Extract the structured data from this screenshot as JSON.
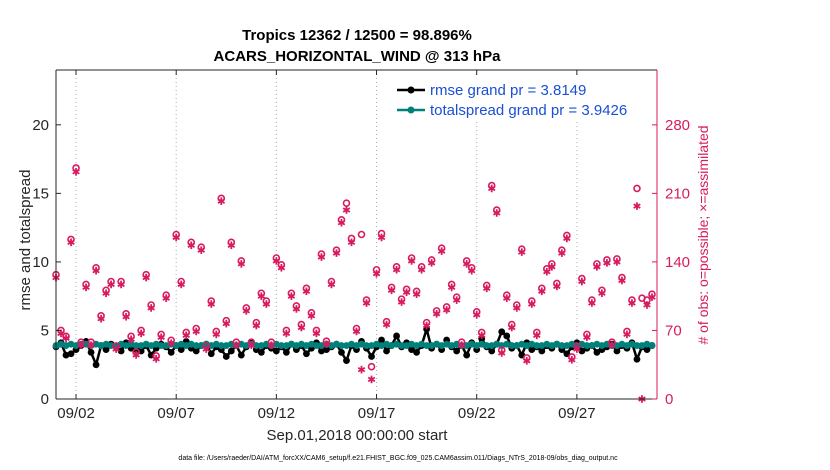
{
  "chart_data": {
    "type": "line",
    "title_line1": "Tropics 12362 / 12500 = 98.896%",
    "title_line2": "ACARS_HORIZONTAL_WIND @ 313 hPa",
    "xlabel": "Sep.01,2018 00:00:00 start",
    "ylabel": "rmse and totalspread",
    "ylabel_right": "# of obs: o=possible; ×=assimilated",
    "footer": "data file: /Users/raeder/DAI/ATM_forcXX/CAM6_setup/f.e21.FHIST_BGC.f09_025.CAM6assim.011/Diags_NTrS_2018-09/obs_diag_output.nc",
    "xlim": [
      0.5,
      30.5
    ],
    "ylim": [
      0,
      24
    ],
    "ylim_right": [
      0,
      336
    ],
    "x_ticks": [
      1.5,
      6.5,
      11.5,
      16.5,
      21.5,
      26.5
    ],
    "x_tick_labels": [
      "09/02",
      "09/07",
      "09/12",
      "09/17",
      "09/22",
      "09/27"
    ],
    "y_ticks": [
      0,
      5,
      10,
      15,
      20
    ],
    "y_tick_labels": [
      "0",
      "5",
      "10",
      "15",
      "20"
    ],
    "y_right_ticks": [
      0,
      70,
      140,
      210,
      280
    ],
    "y_right_tick_labels": [
      "0",
      "70",
      "140",
      "210",
      "280"
    ],
    "legend_location": "top-right",
    "legend": [
      {
        "label": "rmse grand pr = 3.8149",
        "color": "#000000"
      },
      {
        "label": "totalspread grand pr = 3.9426",
        "color": "#00807a"
      }
    ],
    "series": [
      {
        "name": "rmse",
        "color": "#000000",
        "axis": "left",
        "x": [
          0.5,
          0.75,
          1.0,
          1.25,
          1.5,
          1.75,
          2.0,
          2.25,
          2.5,
          2.75,
          3.0,
          3.25,
          3.5,
          3.75,
          4.0,
          4.25,
          4.5,
          4.75,
          5.0,
          5.25,
          5.5,
          5.75,
          6.0,
          6.25,
          6.5,
          6.75,
          7.0,
          7.25,
          7.5,
          7.75,
          8.0,
          8.25,
          8.5,
          8.75,
          9.0,
          9.25,
          9.5,
          9.75,
          10.0,
          10.25,
          10.5,
          10.75,
          11.0,
          11.25,
          11.5,
          11.75,
          12.0,
          12.25,
          12.5,
          12.75,
          13.0,
          13.25,
          13.5,
          13.75,
          14.0,
          14.25,
          14.5,
          14.75,
          15.0,
          15.25,
          15.5,
          15.75,
          16.0,
          16.25,
          16.5,
          16.75,
          17.0,
          17.25,
          17.5,
          17.75,
          18.0,
          18.25,
          18.5,
          18.75,
          19.0,
          19.25,
          19.5,
          19.75,
          20.0,
          20.25,
          20.5,
          20.75,
          21.0,
          21.25,
          21.5,
          21.75,
          22.0,
          22.25,
          22.5,
          22.75,
          23.0,
          23.25,
          23.5,
          23.75,
          24.0,
          24.25,
          24.5,
          24.75,
          25.0,
          25.25,
          25.5,
          25.75,
          26.0,
          26.25,
          26.5,
          26.75,
          27.0,
          27.25,
          27.5,
          27.75,
          28.0,
          28.25,
          28.5,
          28.75,
          29.0,
          29.25,
          29.5,
          29.75,
          30.0,
          30.25
        ],
        "values": [
          3.8,
          4.1,
          3.2,
          3.3,
          3.6,
          3.9,
          4.2,
          3.4,
          2.5,
          3.9,
          3.6,
          4.0,
          3.8,
          3.5,
          4.1,
          3.7,
          3.6,
          3.5,
          3.9,
          3.2,
          3.7,
          4.0,
          3.8,
          3.4,
          3.9,
          3.6,
          4.2,
          3.7,
          3.5,
          3.9,
          4.0,
          3.3,
          3.8,
          3.6,
          3.1,
          3.5,
          3.9,
          3.2,
          3.8,
          4.1,
          3.6,
          3.4,
          3.9,
          3.7,
          3.5,
          3.8,
          3.4,
          4.0,
          3.6,
          3.9,
          3.3,
          3.7,
          4.1,
          3.5,
          3.6,
          3.8,
          4.0,
          3.4,
          2.8,
          3.9,
          3.6,
          4.2,
          3.7,
          3.1,
          3.8,
          4.3,
          3.5,
          3.9,
          4.6,
          3.8,
          4.1,
          3.6,
          3.4,
          3.9,
          5.1,
          3.7,
          4.0,
          3.6,
          4.3,
          3.8,
          3.5,
          3.9,
          3.2,
          4.1,
          3.6,
          4.4,
          3.8,
          3.5,
          4.0,
          4.9,
          4.6,
          3.7,
          3.9,
          3.2,
          4.1,
          3.6,
          3.8,
          3.5,
          3.9,
          3.7,
          4.0,
          3.6,
          3.3,
          3.8,
          4.1,
          3.5,
          3.7,
          3.9,
          3.4,
          3.6,
          3.8,
          4.0,
          3.5,
          3.9,
          3.7,
          4.1,
          2.9,
          3.8,
          3.6,
          3.9
        ]
      },
      {
        "name": "totalspread",
        "color": "#00807a",
        "axis": "left",
        "x": [
          0.5,
          0.75,
          1.0,
          1.25,
          1.5,
          1.75,
          2.0,
          2.25,
          2.5,
          2.75,
          3.0,
          3.25,
          3.5,
          3.75,
          4.0,
          4.25,
          4.5,
          4.75,
          5.0,
          5.25,
          5.5,
          5.75,
          6.0,
          6.25,
          6.5,
          6.75,
          7.0,
          7.25,
          7.5,
          7.75,
          8.0,
          8.25,
          8.5,
          8.75,
          9.0,
          9.25,
          9.5,
          9.75,
          10.0,
          10.25,
          10.5,
          10.75,
          11.0,
          11.25,
          11.5,
          11.75,
          12.0,
          12.25,
          12.5,
          12.75,
          13.0,
          13.25,
          13.5,
          13.75,
          14.0,
          14.25,
          14.5,
          14.75,
          15.0,
          15.25,
          15.5,
          15.75,
          16.0,
          16.25,
          16.5,
          16.75,
          17.0,
          17.25,
          17.5,
          17.75,
          18.0,
          18.25,
          18.5,
          18.75,
          19.0,
          19.25,
          19.5,
          19.75,
          20.0,
          20.25,
          20.5,
          20.75,
          21.0,
          21.25,
          21.5,
          21.75,
          22.0,
          22.25,
          22.5,
          22.75,
          23.0,
          23.25,
          23.5,
          23.75,
          24.0,
          24.25,
          24.5,
          24.75,
          25.0,
          25.25,
          25.5,
          25.75,
          26.0,
          26.25,
          26.5,
          26.75,
          27.0,
          27.25,
          27.5,
          27.75,
          28.0,
          28.25,
          28.5,
          28.75,
          29.0,
          29.25,
          29.5,
          29.75,
          30.0,
          30.25
        ],
        "values": [
          3.9,
          4.0,
          3.9,
          4.0,
          3.9,
          4.0,
          4.0,
          3.9,
          4.0,
          3.9,
          4.0,
          3.9,
          3.9,
          4.0,
          3.9,
          4.0,
          3.9,
          3.9,
          4.0,
          3.9,
          4.0,
          3.9,
          3.9,
          4.0,
          3.9,
          4.0,
          3.9,
          4.0,
          3.9,
          3.9,
          4.0,
          3.9,
          4.0,
          3.9,
          3.9,
          4.0,
          3.9,
          4.0,
          3.9,
          4.0,
          3.9,
          3.9,
          4.0,
          3.9,
          4.0,
          3.9,
          3.9,
          4.0,
          3.9,
          4.0,
          3.9,
          4.0,
          3.9,
          3.9,
          4.0,
          3.9,
          4.0,
          3.9,
          3.9,
          4.0,
          3.9,
          4.0,
          3.9,
          3.9,
          4.0,
          3.9,
          4.0,
          3.9,
          4.0,
          3.9,
          3.9,
          4.0,
          3.9,
          4.0,
          3.9,
          3.9,
          4.0,
          3.9,
          4.0,
          3.9,
          4.0,
          3.9,
          3.9,
          4.0,
          3.9,
          4.0,
          3.9,
          3.9,
          4.0,
          3.9,
          4.0,
          3.9,
          3.9,
          4.0,
          3.9,
          4.0,
          3.9,
          3.9,
          4.0,
          3.9,
          4.0,
          3.9,
          3.9,
          4.0,
          3.9,
          4.0,
          3.9,
          3.9,
          4.0,
          3.9,
          4.0,
          3.9,
          3.9,
          4.0,
          3.9,
          4.0,
          3.9,
          3.9,
          4.0,
          3.9
        ]
      },
      {
        "name": "obs possible",
        "color": "#d81b60",
        "axis": "right",
        "marker": "circle",
        "x": [
          0.5,
          0.75,
          1.0,
          1.25,
          1.5,
          1.75,
          2.0,
          2.25,
          2.5,
          2.75,
          3.0,
          3.25,
          3.5,
          3.75,
          4.0,
          4.25,
          4.5,
          4.75,
          5.0,
          5.25,
          5.5,
          5.75,
          6.0,
          6.25,
          6.5,
          6.75,
          7.0,
          7.25,
          7.5,
          7.75,
          8.0,
          8.25,
          8.5,
          8.75,
          9.0,
          9.25,
          9.5,
          9.75,
          10.0,
          10.25,
          10.5,
          10.75,
          11.0,
          11.25,
          11.5,
          11.75,
          12.0,
          12.25,
          12.5,
          12.75,
          13.0,
          13.25,
          13.5,
          13.75,
          14.0,
          14.25,
          14.5,
          14.75,
          15.0,
          15.25,
          15.5,
          15.75,
          16.0,
          16.25,
          16.5,
          16.75,
          17.0,
          17.25,
          17.5,
          17.75,
          18.0,
          18.25,
          18.5,
          18.75,
          19.0,
          19.25,
          19.5,
          19.75,
          20.0,
          20.25,
          20.5,
          20.75,
          21.0,
          21.25,
          21.5,
          21.75,
          22.0,
          22.25,
          22.5,
          22.75,
          23.0,
          23.25,
          23.5,
          23.75,
          24.0,
          24.25,
          24.5,
          24.75,
          25.0,
          25.25,
          25.5,
          25.75,
          26.0,
          26.25,
          26.5,
          26.75,
          27.0,
          27.25,
          27.5,
          27.75,
          28.0,
          28.25,
          28.5,
          28.75,
          29.0,
          29.25,
          29.5,
          29.75,
          30.0,
          30.25
        ],
        "values": [
          127,
          70,
          64,
          163,
          236,
          58,
          117,
          58,
          134,
          85,
          111,
          120,
          54,
          120,
          87,
          64,
          48,
          70,
          127,
          96,
          44,
          66,
          106,
          60,
          168,
          120,
          68,
          160,
          72,
          155,
          54,
          100,
          69,
          205,
          80,
          160,
          58,
          141,
          93,
          58,
          78,
          108,
          100,
          58,
          144,
          137,
          70,
          108,
          95,
          76,
          113,
          88,
          70,
          148,
          59,
          120,
          152,
          183,
          200,
          164,
          72,
          168,
          101,
          33,
          132,
          169,
          79,
          114,
          135,
          102,
          112,
          144,
          110,
          135,
          78,
          142,
          90,
          154,
          94,
          117,
          104,
          58,
          141,
          134,
          89,
          68,
          116,
          218,
          193,
          50,
          106,
          76,
          96,
          153,
          42,
          100,
          68,
          113,
          133,
          138,
          118,
          152,
          167,
          43,
          54,
          123,
          66,
          101,
          138,
          111,
          142,
          58,
          143,
          124,
          69,
          101,
          215,
          103,
          101,
          107
        ]
      },
      {
        "name": "obs assimilated",
        "color": "#d81b60",
        "axis": "right",
        "marker": "star",
        "x": [
          0.5,
          0.75,
          1.0,
          1.25,
          1.5,
          1.75,
          2.0,
          2.25,
          2.5,
          2.75,
          3.0,
          3.25,
          3.5,
          3.75,
          4.0,
          4.25,
          4.5,
          4.75,
          5.0,
          5.25,
          5.5,
          5.75,
          6.0,
          6.25,
          6.5,
          6.75,
          7.0,
          7.25,
          7.5,
          7.75,
          8.0,
          8.25,
          8.5,
          8.75,
          9.0,
          9.25,
          9.5,
          9.75,
          10.0,
          10.25,
          10.5,
          10.75,
          11.0,
          11.25,
          11.5,
          11.75,
          12.0,
          12.25,
          12.5,
          12.75,
          13.0,
          13.25,
          13.5,
          13.75,
          14.0,
          14.25,
          14.5,
          14.75,
          15.0,
          15.25,
          15.5,
          15.75,
          16.0,
          16.25,
          16.5,
          16.75,
          17.0,
          17.25,
          17.5,
          17.75,
          18.0,
          18.25,
          18.5,
          18.75,
          19.0,
          19.25,
          19.5,
          19.75,
          20.0,
          20.25,
          20.5,
          20.75,
          21.0,
          21.25,
          21.5,
          21.75,
          22.0,
          22.25,
          22.5,
          22.75,
          23.0,
          23.25,
          23.5,
          23.75,
          24.0,
          24.25,
          24.5,
          24.75,
          25.0,
          25.25,
          25.5,
          25.75,
          26.0,
          26.25,
          26.5,
          26.75,
          27.0,
          27.25,
          27.5,
          27.75,
          28.0,
          28.25,
          28.5,
          28.75,
          29.0,
          29.25,
          29.5,
          29.75,
          30.0,
          30.25
        ],
        "values": [
          124,
          67,
          62,
          160,
          232,
          55,
          114,
          55,
          131,
          82,
          108,
          117,
          51,
          117,
          84,
          61,
          45,
          67,
          124,
          93,
          41,
          63,
          103,
          57,
          165,
          117,
          65,
          157,
          69,
          152,
          51,
          97,
          66,
          202,
          77,
          157,
          55,
          138,
          90,
          55,
          75,
          105,
          97,
          55,
          141,
          134,
          67,
          105,
          92,
          73,
          110,
          85,
          67,
          145,
          56,
          117,
          149,
          180,
          193,
          160,
          69,
          30,
          98,
          20,
          128,
          165,
          76,
          111,
          132,
          99,
          109,
          141,
          107,
          132,
          75,
          139,
          87,
          151,
          91,
          114,
          101,
          55,
          138,
          131,
          86,
          65,
          113,
          215,
          190,
          47,
          103,
          73,
          93,
          150,
          39,
          97,
          65,
          110,
          130,
          135,
          115,
          149,
          164,
          40,
          51,
          120,
          63,
          98,
          135,
          108,
          139,
          55,
          140,
          121,
          66,
          98,
          197,
          0,
          96,
          104
        ]
      }
    ]
  }
}
